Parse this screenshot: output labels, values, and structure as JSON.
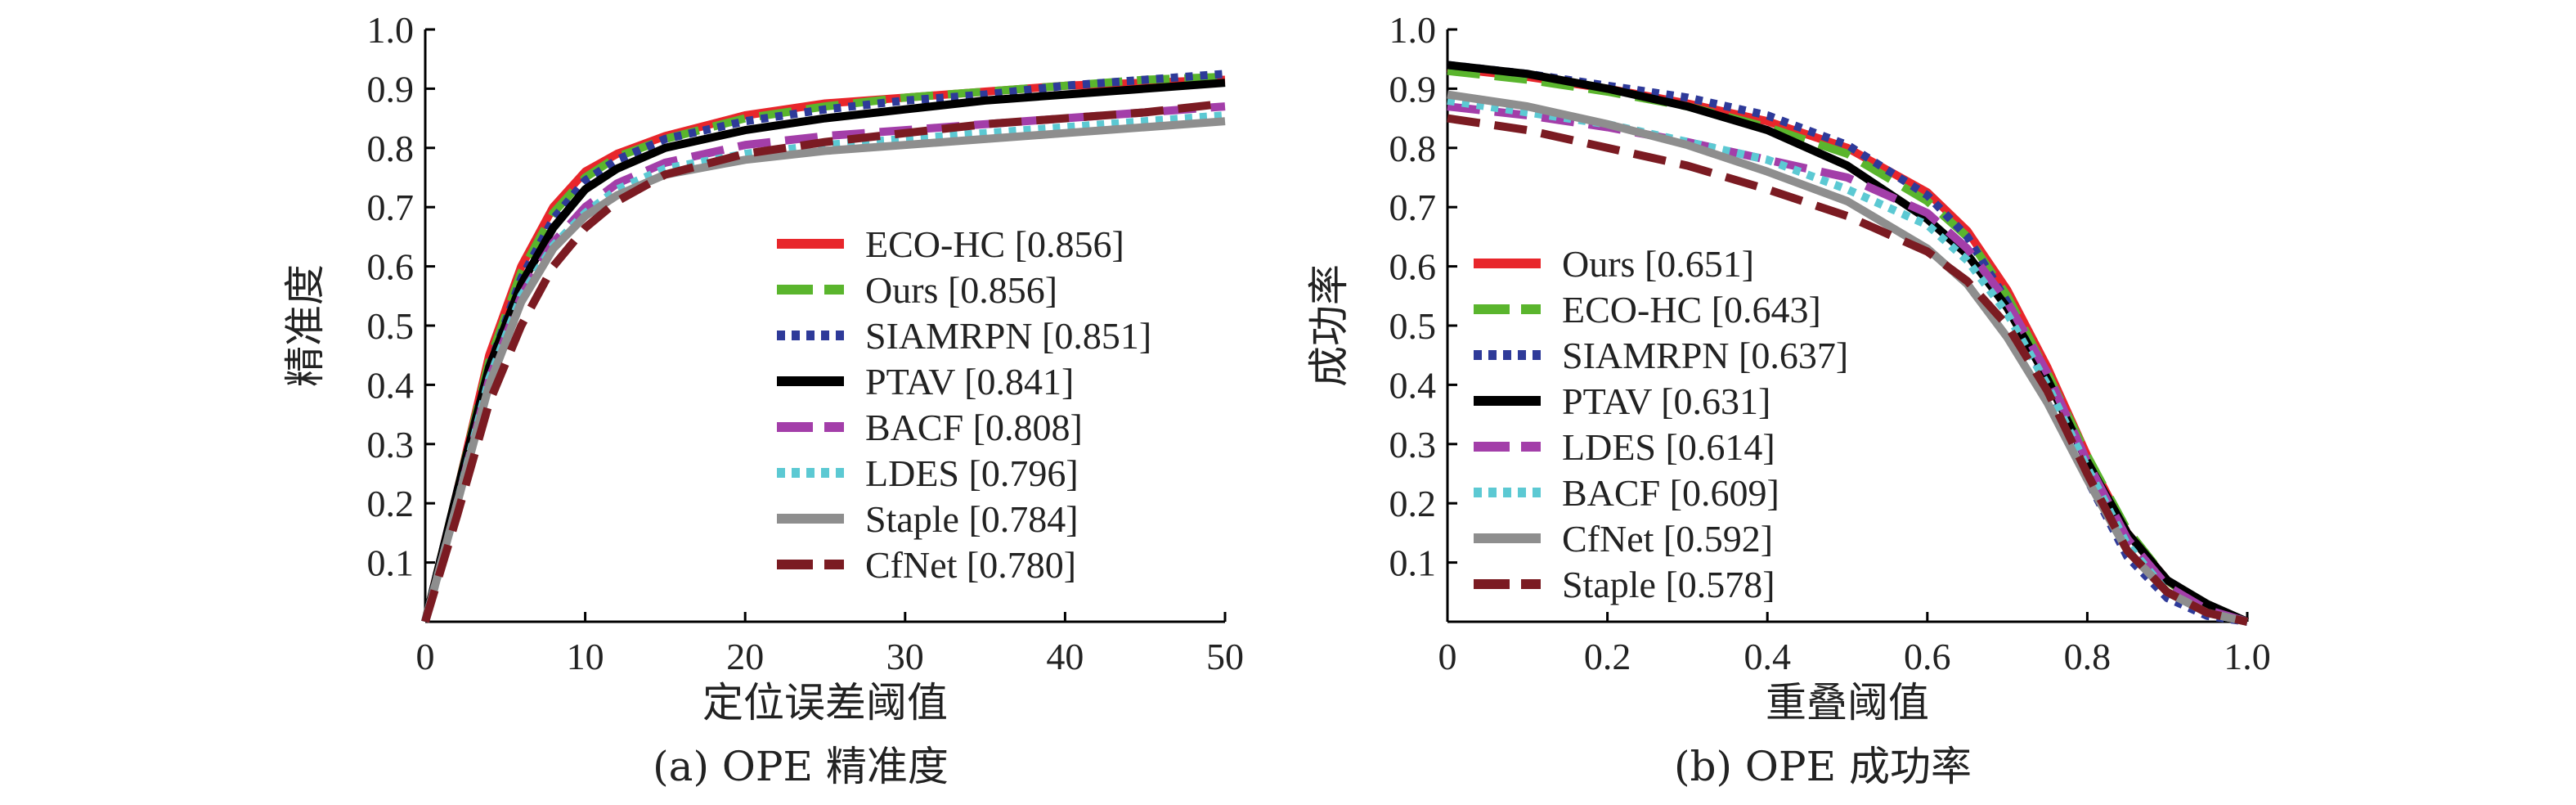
{
  "chart_data": [
    {
      "type": "line",
      "xlabel": "定位误差阈值",
      "ylabel": "精准度",
      "caption": "(a) OPE 精准度",
      "xlim": [
        0,
        50
      ],
      "ylim": [
        0,
        1.0
      ],
      "x_ticks": [
        "0",
        "10",
        "20",
        "30",
        "40",
        "50"
      ],
      "y_ticks": [
        "0.1",
        "0.2",
        "0.3",
        "0.4",
        "0.5",
        "0.6",
        "0.7",
        "0.8",
        "0.9",
        "1.0"
      ],
      "legend_position": "center-right",
      "series": [
        {
          "name": "ECO-HC [0.856]",
          "color": "#e8262b",
          "dash": "solid",
          "points": [
            [
              0,
              0
            ],
            [
              2,
              0.22
            ],
            [
              4,
              0.45
            ],
            [
              6,
              0.6
            ],
            [
              8,
              0.7
            ],
            [
              10,
              0.76
            ],
            [
              12,
              0.79
            ],
            [
              15,
              0.82
            ],
            [
              20,
              0.855
            ],
            [
              25,
              0.875
            ],
            [
              30,
              0.885
            ],
            [
              35,
              0.895
            ],
            [
              40,
              0.905
            ],
            [
              45,
              0.91
            ],
            [
              50,
              0.915
            ]
          ]
        },
        {
          "name": "Ours [0.856]",
          "color": "#5ab52d",
          "dash": "long",
          "points": [
            [
              0,
              0
            ],
            [
              2,
              0.22
            ],
            [
              4,
              0.44
            ],
            [
              6,
              0.59
            ],
            [
              8,
              0.69
            ],
            [
              10,
              0.75
            ],
            [
              12,
              0.785
            ],
            [
              15,
              0.815
            ],
            [
              20,
              0.85
            ],
            [
              25,
              0.87
            ],
            [
              30,
              0.885
            ],
            [
              35,
              0.895
            ],
            [
              40,
              0.905
            ],
            [
              45,
              0.915
            ],
            [
              50,
              0.92
            ]
          ]
        },
        {
          "name": "SIAMRPN [0.851]",
          "color": "#2e3a99",
          "dash": "dot",
          "points": [
            [
              0,
              0
            ],
            [
              2,
              0.22
            ],
            [
              4,
              0.43
            ],
            [
              6,
              0.58
            ],
            [
              8,
              0.68
            ],
            [
              10,
              0.745
            ],
            [
              12,
              0.78
            ],
            [
              15,
              0.815
            ],
            [
              20,
              0.845
            ],
            [
              25,
              0.865
            ],
            [
              30,
              0.88
            ],
            [
              35,
              0.89
            ],
            [
              40,
              0.905
            ],
            [
              45,
              0.915
            ],
            [
              50,
              0.925
            ]
          ]
        },
        {
          "name": "PTAV [0.841]",
          "color": "#000000",
          "dash": "solid",
          "points": [
            [
              0,
              0
            ],
            [
              2,
              0.22
            ],
            [
              4,
              0.43
            ],
            [
              6,
              0.57
            ],
            [
              8,
              0.665
            ],
            [
              10,
              0.73
            ],
            [
              12,
              0.765
            ],
            [
              15,
              0.8
            ],
            [
              20,
              0.83
            ],
            [
              25,
              0.85
            ],
            [
              30,
              0.865
            ],
            [
              35,
              0.88
            ],
            [
              40,
              0.89
            ],
            [
              45,
              0.9
            ],
            [
              50,
              0.91
            ]
          ]
        },
        {
          "name": "BACF [0.808]",
          "color": "#a33ea9",
          "dash": "long",
          "points": [
            [
              0,
              0
            ],
            [
              2,
              0.2
            ],
            [
              4,
              0.41
            ],
            [
              6,
              0.55
            ],
            [
              8,
              0.64
            ],
            [
              10,
              0.7
            ],
            [
              12,
              0.74
            ],
            [
              15,
              0.775
            ],
            [
              20,
              0.805
            ],
            [
              25,
              0.82
            ],
            [
              30,
              0.83
            ],
            [
              35,
              0.84
            ],
            [
              40,
              0.85
            ],
            [
              45,
              0.86
            ],
            [
              50,
              0.87
            ]
          ]
        },
        {
          "name": "LDES [0.796]",
          "color": "#5cc9d3",
          "dash": "dot",
          "points": [
            [
              0,
              0
            ],
            [
              2,
              0.2
            ],
            [
              4,
              0.41
            ],
            [
              6,
              0.55
            ],
            [
              8,
              0.635
            ],
            [
              10,
              0.69
            ],
            [
              12,
              0.73
            ],
            [
              15,
              0.765
            ],
            [
              20,
              0.79
            ],
            [
              25,
              0.805
            ],
            [
              30,
              0.815
            ],
            [
              35,
              0.825
            ],
            [
              40,
              0.835
            ],
            [
              45,
              0.845
            ],
            [
              50,
              0.855
            ]
          ]
        },
        {
          "name": "Staple [0.784]",
          "color": "#8e8e8e",
          "dash": "solid",
          "points": [
            [
              0,
              0
            ],
            [
              2,
              0.2
            ],
            [
              4,
              0.4
            ],
            [
              6,
              0.54
            ],
            [
              8,
              0.63
            ],
            [
              10,
              0.685
            ],
            [
              12,
              0.72
            ],
            [
              15,
              0.755
            ],
            [
              20,
              0.78
            ],
            [
              25,
              0.795
            ],
            [
              30,
              0.805
            ],
            [
              35,
              0.815
            ],
            [
              40,
              0.825
            ],
            [
              45,
              0.835
            ],
            [
              50,
              0.845
            ]
          ]
        },
        {
          "name": "CfNet [0.780]",
          "color": "#7b1b22",
          "dash": "long",
          "points": [
            [
              0,
              0
            ],
            [
              2,
              0.18
            ],
            [
              4,
              0.37
            ],
            [
              6,
              0.5
            ],
            [
              8,
              0.6
            ],
            [
              10,
              0.665
            ],
            [
              12,
              0.71
            ],
            [
              15,
              0.755
            ],
            [
              20,
              0.79
            ],
            [
              25,
              0.81
            ],
            [
              30,
              0.825
            ],
            [
              35,
              0.84
            ],
            [
              40,
              0.85
            ],
            [
              45,
              0.86
            ],
            [
              50,
              0.875
            ]
          ]
        }
      ]
    },
    {
      "type": "line",
      "xlabel": "重叠阈值",
      "ylabel": "成功率",
      "caption": "(b) OPE 成功率",
      "xlim": [
        0,
        1.0
      ],
      "ylim": [
        0,
        1.0
      ],
      "x_ticks": [
        "0",
        "0.2",
        "0.4",
        "0.6",
        "0.8",
        "1.0"
      ],
      "y_ticks": [
        "0.1",
        "0.2",
        "0.3",
        "0.4",
        "0.5",
        "0.6",
        "0.7",
        "0.8",
        "0.9",
        "1.0"
      ],
      "legend_position": "lower-left",
      "series": [
        {
          "name": "Ours [0.651]",
          "color": "#e8262b",
          "dash": "solid",
          "points": [
            [
              0,
              0.935
            ],
            [
              0.1,
              0.92
            ],
            [
              0.2,
              0.9
            ],
            [
              0.3,
              0.875
            ],
            [
              0.4,
              0.845
            ],
            [
              0.5,
              0.8
            ],
            [
              0.6,
              0.725
            ],
            [
              0.65,
              0.66
            ],
            [
              0.7,
              0.56
            ],
            [
              0.75,
              0.43
            ],
            [
              0.8,
              0.28
            ],
            [
              0.85,
              0.15
            ],
            [
              0.9,
              0.07
            ],
            [
              0.95,
              0.02
            ],
            [
              1.0,
              0
            ]
          ]
        },
        {
          "name": "ECO-HC [0.643]",
          "color": "#5ab52d",
          "dash": "long",
          "points": [
            [
              0,
              0.93
            ],
            [
              0.1,
              0.915
            ],
            [
              0.2,
              0.895
            ],
            [
              0.3,
              0.87
            ],
            [
              0.4,
              0.835
            ],
            [
              0.5,
              0.79
            ],
            [
              0.6,
              0.71
            ],
            [
              0.65,
              0.65
            ],
            [
              0.7,
              0.55
            ],
            [
              0.75,
              0.42
            ],
            [
              0.8,
              0.28
            ],
            [
              0.85,
              0.155
            ],
            [
              0.9,
              0.07
            ],
            [
              0.95,
              0.02
            ],
            [
              1.0,
              0
            ]
          ]
        },
        {
          "name": "SIAMRPN [0.637]",
          "color": "#2e3a99",
          "dash": "dot",
          "points": [
            [
              0,
              0.94
            ],
            [
              0.1,
              0.925
            ],
            [
              0.2,
              0.905
            ],
            [
              0.3,
              0.885
            ],
            [
              0.4,
              0.855
            ],
            [
              0.5,
              0.805
            ],
            [
              0.6,
              0.72
            ],
            [
              0.65,
              0.65
            ],
            [
              0.7,
              0.54
            ],
            [
              0.75,
              0.4
            ],
            [
              0.8,
              0.24
            ],
            [
              0.85,
              0.11
            ],
            [
              0.9,
              0.04
            ],
            [
              0.95,
              0.01
            ],
            [
              1.0,
              0
            ]
          ]
        },
        {
          "name": "PTAV [0.631]",
          "color": "#000000",
          "dash": "solid",
          "points": [
            [
              0,
              0.94
            ],
            [
              0.1,
              0.925
            ],
            [
              0.2,
              0.9
            ],
            [
              0.3,
              0.87
            ],
            [
              0.4,
              0.83
            ],
            [
              0.5,
              0.77
            ],
            [
              0.6,
              0.68
            ],
            [
              0.65,
              0.62
            ],
            [
              0.7,
              0.53
            ],
            [
              0.75,
              0.41
            ],
            [
              0.8,
              0.27
            ],
            [
              0.85,
              0.15
            ],
            [
              0.9,
              0.07
            ],
            [
              0.95,
              0.03
            ],
            [
              1.0,
              0
            ]
          ]
        },
        {
          "name": "LDES [0.614]",
          "color": "#a33ea9",
          "dash": "long",
          "points": [
            [
              0,
              0.87
            ],
            [
              0.1,
              0.855
            ],
            [
              0.2,
              0.835
            ],
            [
              0.3,
              0.81
            ],
            [
              0.4,
              0.78
            ],
            [
              0.5,
              0.75
            ],
            [
              0.6,
              0.69
            ],
            [
              0.65,
              0.63
            ],
            [
              0.7,
              0.54
            ],
            [
              0.75,
              0.42
            ],
            [
              0.8,
              0.27
            ],
            [
              0.85,
              0.14
            ],
            [
              0.9,
              0.06
            ],
            [
              0.95,
              0.02
            ],
            [
              1.0,
              0
            ]
          ]
        },
        {
          "name": "BACF [0.609]",
          "color": "#5cc9d3",
          "dash": "dot",
          "points": [
            [
              0,
              0.88
            ],
            [
              0.1,
              0.86
            ],
            [
              0.2,
              0.84
            ],
            [
              0.3,
              0.81
            ],
            [
              0.4,
              0.78
            ],
            [
              0.5,
              0.73
            ],
            [
              0.6,
              0.67
            ],
            [
              0.65,
              0.61
            ],
            [
              0.7,
              0.52
            ],
            [
              0.75,
              0.4
            ],
            [
              0.8,
              0.26
            ],
            [
              0.85,
              0.13
            ],
            [
              0.9,
              0.05
            ],
            [
              0.95,
              0.015
            ],
            [
              1.0,
              0
            ]
          ]
        },
        {
          "name": "CfNet [0.592]",
          "color": "#8e8e8e",
          "dash": "solid",
          "points": [
            [
              0,
              0.89
            ],
            [
              0.1,
              0.87
            ],
            [
              0.2,
              0.84
            ],
            [
              0.3,
              0.805
            ],
            [
              0.4,
              0.76
            ],
            [
              0.5,
              0.71
            ],
            [
              0.6,
              0.63
            ],
            [
              0.65,
              0.57
            ],
            [
              0.7,
              0.48
            ],
            [
              0.75,
              0.37
            ],
            [
              0.8,
              0.24
            ],
            [
              0.85,
              0.12
            ],
            [
              0.9,
              0.05
            ],
            [
              0.95,
              0.015
            ],
            [
              1.0,
              0
            ]
          ]
        },
        {
          "name": "Staple [0.578]",
          "color": "#7b1b22",
          "dash": "long",
          "points": [
            [
              0,
              0.85
            ],
            [
              0.1,
              0.83
            ],
            [
              0.2,
              0.8
            ],
            [
              0.3,
              0.77
            ],
            [
              0.4,
              0.73
            ],
            [
              0.5,
              0.685
            ],
            [
              0.6,
              0.625
            ],
            [
              0.65,
              0.575
            ],
            [
              0.7,
              0.5
            ],
            [
              0.75,
              0.39
            ],
            [
              0.8,
              0.25
            ],
            [
              0.85,
              0.12
            ],
            [
              0.9,
              0.05
            ],
            [
              0.95,
              0.015
            ],
            [
              1.0,
              0
            ]
          ]
        }
      ]
    }
  ]
}
